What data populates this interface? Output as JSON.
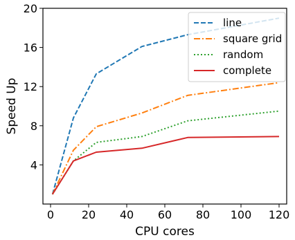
{
  "chart_data": {
    "type": "line",
    "title": "",
    "xlabel": "CPU cores",
    "ylabel": "Speed Up",
    "xlim": [
      -4,
      124
    ],
    "ylim": [
      0,
      20
    ],
    "xticks": [
      0,
      20,
      40,
      60,
      80,
      100,
      120
    ],
    "yticks": [
      4,
      8,
      12,
      16,
      20
    ],
    "grid": false,
    "legend_position": "top-right",
    "series": [
      {
        "name": "line",
        "color": "#1f77b4",
        "style": "dashed",
        "x": [
          1,
          12,
          24,
          48,
          72,
          120
        ],
        "y": [
          1.0,
          8.8,
          13.3,
          16.1,
          17.3,
          19.0
        ]
      },
      {
        "name": "square grid",
        "color": "#ff7f0e",
        "style": "dashdot",
        "x": [
          1,
          12,
          24,
          48,
          72,
          120
        ],
        "y": [
          1.0,
          5.5,
          7.9,
          9.3,
          11.1,
          12.4
        ]
      },
      {
        "name": "random",
        "color": "#2ca02c",
        "style": "dotted",
        "x": [
          1,
          12,
          24,
          48,
          72,
          120
        ],
        "y": [
          1.0,
          4.4,
          6.3,
          6.9,
          8.5,
          9.5
        ]
      },
      {
        "name": "complete",
        "color": "#d62728",
        "style": "solid",
        "x": [
          1,
          12,
          24,
          48,
          72,
          120
        ],
        "y": [
          1.0,
          4.4,
          5.3,
          5.7,
          6.8,
          6.9
        ]
      }
    ]
  }
}
